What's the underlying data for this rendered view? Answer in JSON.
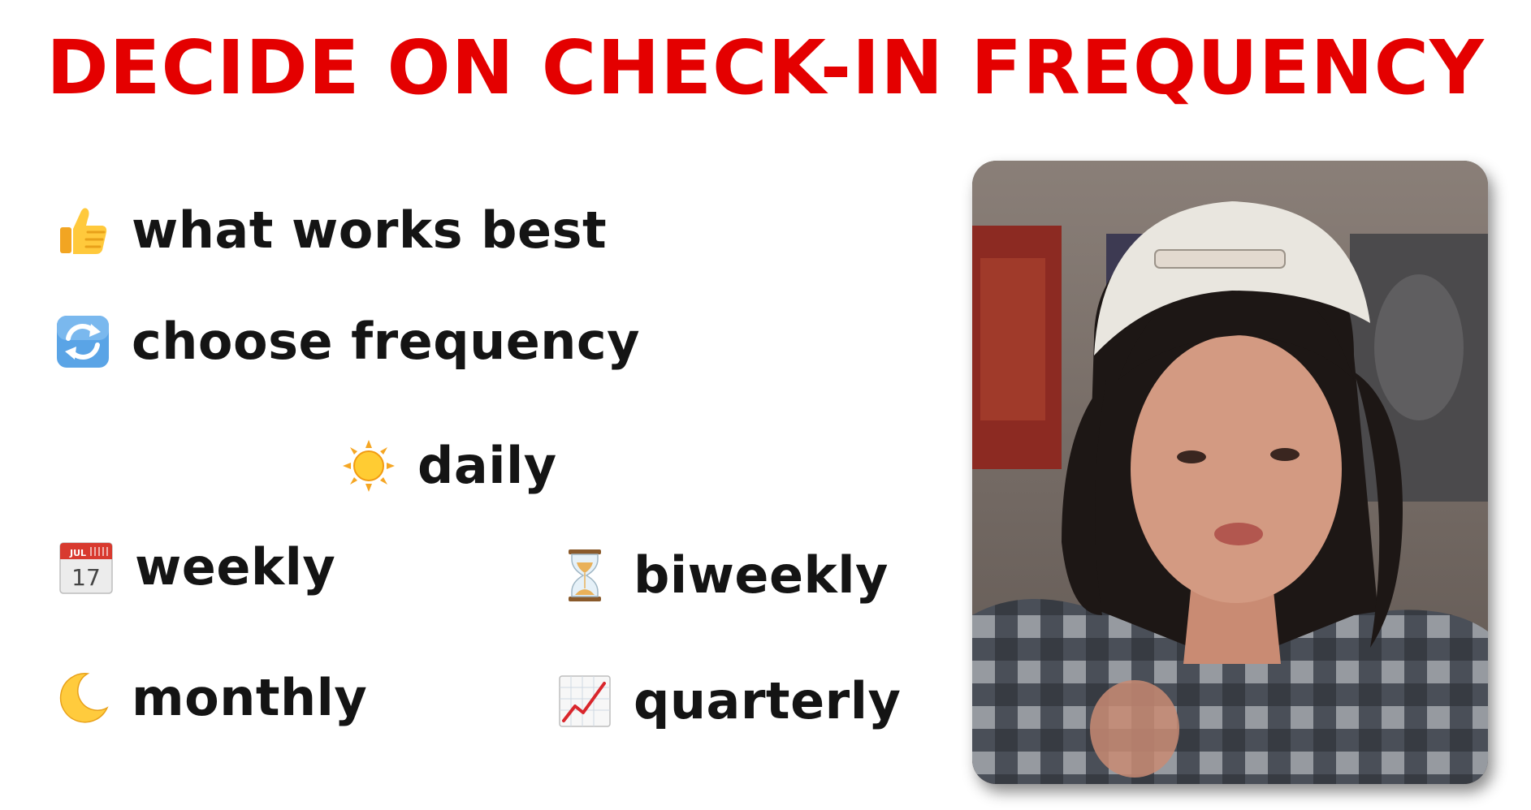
{
  "slide": {
    "title": "DECIDE ON CHECK-IN FREQUENCY",
    "accent_color": "#e40000",
    "text_color": "#141414"
  },
  "items": {
    "what_works_best": {
      "label": "what works best",
      "icon": "thumbs-up-icon"
    },
    "choose_frequency": {
      "label": "choose frequency",
      "icon": "repeat-arrows-icon"
    },
    "daily": {
      "label": "daily",
      "icon": "sun-icon"
    },
    "weekly": {
      "label": "weekly",
      "icon": "calendar-icon",
      "calendar_month": "JUL",
      "calendar_day": "17"
    },
    "biweekly": {
      "label": "biweekly",
      "icon": "hourglass-icon"
    },
    "monthly": {
      "label": "monthly",
      "icon": "crescent-moon-icon"
    },
    "quarterly": {
      "label": "quarterly",
      "icon": "chart-increasing-icon"
    }
  },
  "photo": {
    "subject": "presenter-photo"
  }
}
